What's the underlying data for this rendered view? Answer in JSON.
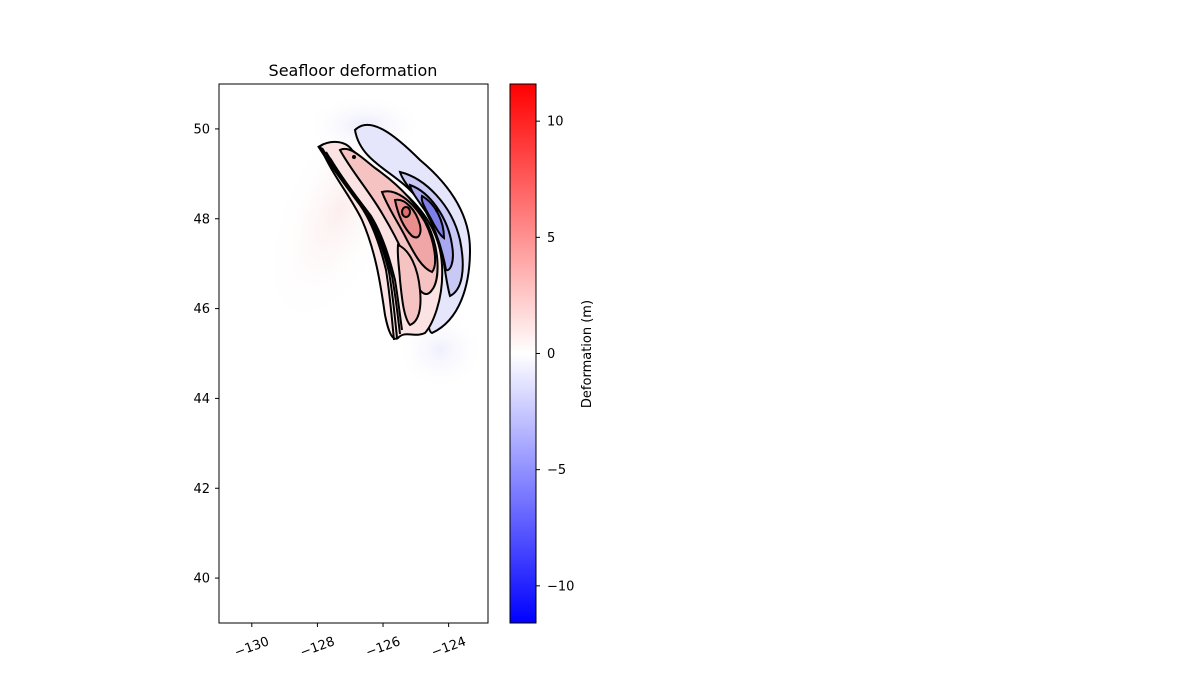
{
  "chart_data": {
    "type": "heatmap",
    "title": "Seafloor deformation",
    "xlabel": "",
    "ylabel": "",
    "xlim": [
      -131,
      -122.8
    ],
    "ylim": [
      39,
      51
    ],
    "x_ticks": [
      -130,
      -128,
      -126,
      -124
    ],
    "x_tick_labels": [
      "−130",
      "−128",
      "−126",
      "−124"
    ],
    "y_ticks": [
      40,
      42,
      44,
      46,
      48,
      50
    ],
    "y_tick_labels": [
      "40",
      "42",
      "44",
      "46",
      "48",
      "50"
    ],
    "grid": false,
    "colorbar": {
      "label": "Deformation (m)",
      "range": [
        -11.6,
        11.6
      ],
      "ticks": [
        -10,
        -5,
        0,
        5,
        10
      ],
      "tick_labels": [
        "−10",
        "−5",
        "0",
        "5",
        "10"
      ],
      "colormap": [
        "#0000ff",
        "#ffffff",
        "#ff0000"
      ]
    },
    "features": [
      {
        "kind": "positive-uplift",
        "peak_m": 8,
        "peak_lon": -125.0,
        "peak_lat": 48.1
      },
      {
        "kind": "negative-subsidence",
        "peak_m": -5,
        "peak_lon": -124.1,
        "peak_lat": 48.2
      }
    ]
  }
}
